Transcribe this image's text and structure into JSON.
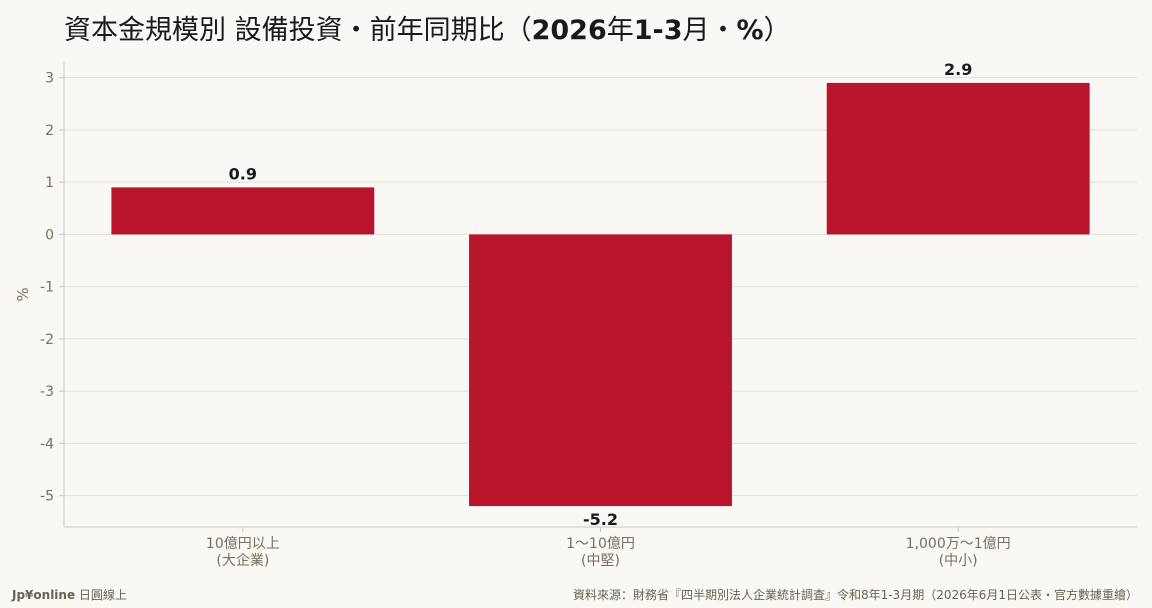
{
  "title_main": "資本金規模別 設備投資・前年同期比（",
  "title_bold": "2026",
  "title_mid": "年",
  "title_bold2": "1-3",
  "title_end": "月・",
  "title_bold3": "%",
  "title_close": "）",
  "footer": {
    "brand": "Jp¥online",
    "brand_sub": " 日圓線上",
    "source": "資料來源：財務省『四半期別法人企業統計調査』令和8年1-3月期（2026年6月1日公表・官方數據重繪）"
  },
  "chart_data": {
    "type": "bar",
    "categories": [
      [
        "10億円以上",
        "(大企業)"
      ],
      [
        "1〜10億円",
        "(中堅)"
      ],
      [
        "1,000万〜1億円",
        "(中小)"
      ]
    ],
    "values": [
      0.9,
      -5.2,
      2.9
    ],
    "data_labels": [
      "0.9",
      "-5.2",
      "2.9"
    ],
    "ylabel": "%",
    "ylim": [
      -5.6,
      3.3
    ],
    "yticks": [
      3,
      2,
      1,
      0,
      -1,
      -2,
      -3,
      -4,
      -5
    ],
    "grid": true,
    "colors": {
      "bar": "#b8152c",
      "grid": "#e4e0d8",
      "axis": "#cfcac0",
      "tick_text": "#7a6e5e",
      "label_text": "#1a1a1a"
    }
  }
}
